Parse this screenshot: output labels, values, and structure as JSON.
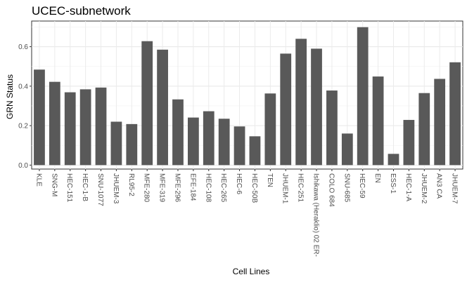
{
  "chart_data": {
    "type": "bar",
    "title": "UCEC-subnetwork",
    "xlabel": "Cell Lines",
    "ylabel": "GRN Status",
    "ylim": [
      -0.02,
      0.73
    ],
    "yticks": [
      "0.0",
      "0.2",
      "0.4",
      "0.6"
    ],
    "grid": true,
    "bar_color": "#595959",
    "categories": [
      "KLE",
      "SNG-M",
      "HEC-151",
      "HEC-1-B",
      "SNU-1077",
      "JHUEM-3",
      "RL95-2",
      "MFE-280",
      "MFE-319",
      "MFE-296",
      "EFE-184",
      "HEC-108",
      "HEC-265",
      "HEC-6",
      "HEC-50B",
      "TEN",
      "JHUEM-1",
      "HEC-251",
      "Ishikawa (Heraklio) 02 ER-",
      "COLO 684",
      "SNU-685",
      "HEC-59",
      "EN",
      "ESS-1",
      "HEC-1-A",
      "JHUEM-2",
      "AN3 CA",
      "JHUEM-7"
    ],
    "values": [
      0.484,
      0.422,
      0.369,
      0.384,
      0.393,
      0.22,
      0.208,
      0.628,
      0.585,
      0.333,
      0.241,
      0.273,
      0.235,
      0.196,
      0.146,
      0.363,
      0.565,
      0.64,
      0.59,
      0.378,
      0.16,
      0.699,
      0.449,
      0.057,
      0.229,
      0.365,
      0.437,
      0.521
    ]
  }
}
